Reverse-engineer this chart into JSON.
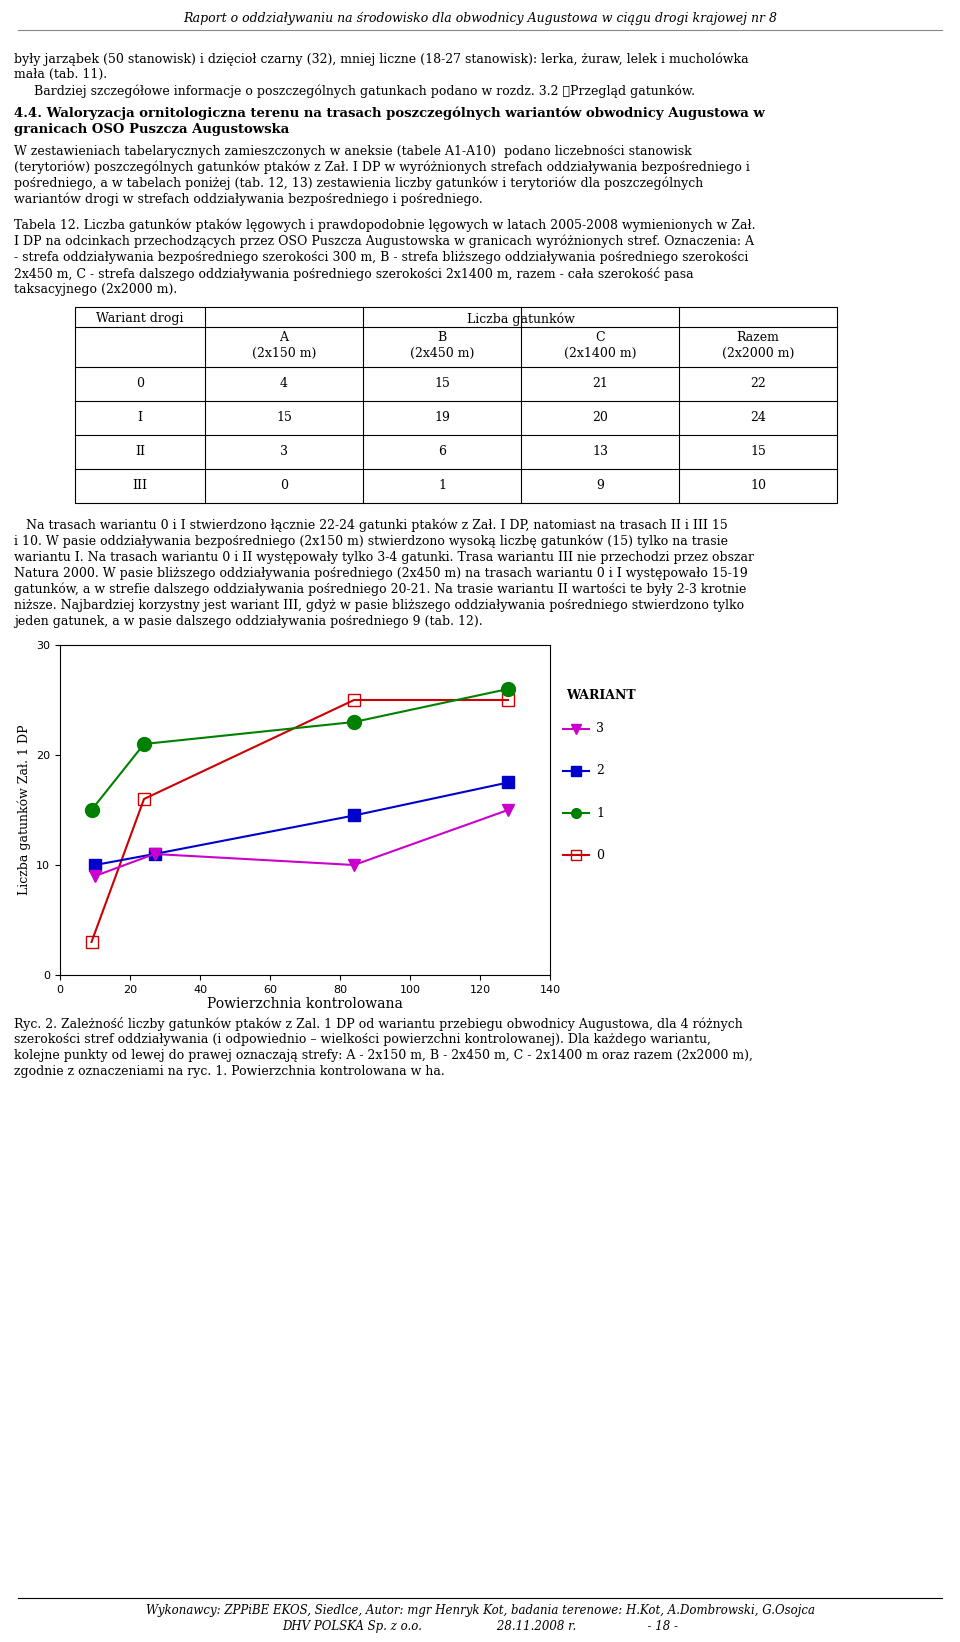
{
  "header": "Raport o oddziaływaniu na środowisko dla obwodnicy Augustowa w ciągu drogi krajowej nr 8",
  "footer_line1": "Wykonawcy: ZPPiBE EKOS, Siedlce, Autor: mgr Henryk Kot, badania terenowe: H.Kot, A.Dombrowski, G.Osojca",
  "footer_line2": "DHV POLSKA Sp. z o.o.                    28.11.2008 r.                   - 18 -",
  "body_text": [
    "były jarząbek (50 stanowisk) i dzięcioł czarny (32), mniej liczne (18-27 stanowisk): lerka, żuraw, lelek i mucholówka",
    "mała (tab. 11).",
    "     Bardziej szczegółowe informacje o poszczególnych gatunkach podano w rozdz. 3.2  Przegląd gatunków."
  ],
  "section_title1": "4.4. Waloryzacja ornitologiczna terenu na trasach poszczególnych wariantów obwodnicy Augustowa w",
  "section_title2": "granicach OSO Puszcza Augustowska",
  "body_text2": [
    "W zestawieniach tabelarycznych zamieszczonych w aneksie (tabele A1-A10)  podano liczebności stanowisk",
    "(terytoriów) poszczególnych gatunków ptaków z Zał. I DP w wyróżnionych strefach oddziaływania bezpośredniego i",
    "pośredniego, a w tabelach poniżej (tab. 12, 13) zestawienia liczby gatunków i terytoriów dla poszczególnych",
    "wariantów drogi w strefach oddziaływania bezpośredniego i pośredniego."
  ],
  "caption_lines": [
    "Tabela 12. Liczba gatunków ptaków lęgowych i prawdopodobnie lęgowych w latach 2005-2008 wymienionych w Zał.",
    "I DP na odcinkach przechodzących przez OSO Puszcza Augustowska w granicach wyróżnionych stref. Oznaczenia: A",
    "- strefa oddziaływania bezpośredniego szerokości 300 m, B - strefa bliższego oddziaływania pośredniego szerokości",
    "2x450 m, C - strefa dalszego oddziaływania pośredniego szerokości 2x1400 m, razem - cała szerokość pasa",
    "taksacyjnego (2x2000 m)."
  ],
  "table_rows": [
    [
      "0",
      "4",
      "15",
      "21",
      "22"
    ],
    [
      "I",
      "15",
      "19",
      "20",
      "24"
    ],
    [
      "II",
      "3",
      "6",
      "13",
      "15"
    ],
    [
      "III",
      "0",
      "1",
      "9",
      "10"
    ]
  ],
  "body_text3": [
    "   Na trasach wariantu 0 i I stwierdzono łącznie 22-24 gatunki ptaków z Zał. I DP, natomiast na trasach II i III 15",
    "i 10. W pasie oddziaływania bezpośredniego (2x150 m) stwierdzono wysoką liczbę gatunków (15) tylko na trasie",
    "wariantu I. Na trasach wariantu 0 i II występowały tylko 3-4 gatunki. Trasa wariantu III nie przechodzi przez obszar",
    "Natura 2000. W pasie bliższego oddziaływania pośredniego (2x450 m) na trasach wariantu 0 i I występowało 15-19",
    "gatunków, a w strefie dalszego oddziaływania pośredniego 20-21. Na trasie wariantu II wartości te były 2-3 krotnie",
    "niższe. Najbardziej korzystny jest wariant III, gdyż w pasie bliższego oddziaływania pośredniego stwierdzono tylko",
    "jeden gatunek, a w pasie dalszego oddziaływania pośredniego 9 (tab. 12)."
  ],
  "chart": {
    "xlabel": "Powierzchnia kontrolowana",
    "ylabel": "Liczba gatunków Zał. 1 DP",
    "xlim": [
      0,
      140
    ],
    "ylim": [
      0,
      30
    ],
    "xticks": [
      0,
      20,
      40,
      60,
      80,
      100,
      120,
      140
    ],
    "yticks": [
      0,
      10,
      20,
      30
    ],
    "series": [
      {
        "label": "0",
        "x": [
          9,
          24,
          84,
          128
        ],
        "y": [
          3,
          16,
          25,
          25
        ],
        "color": "#CC0000",
        "marker": "s",
        "markersize": 8,
        "filled": false,
        "legend_num": "0"
      },
      {
        "label": "1",
        "x": [
          9,
          24,
          84,
          128
        ],
        "y": [
          15,
          21,
          23,
          26
        ],
        "color": "#008000",
        "marker": "o",
        "markersize": 10,
        "filled": true,
        "legend_num": "1"
      },
      {
        "label": "2",
        "x": [
          10,
          27,
          84,
          128
        ],
        "y": [
          10,
          11,
          14.5,
          17.5
        ],
        "color": "#0000CC",
        "marker": "s",
        "markersize": 8,
        "filled": true,
        "legend_num": "2"
      },
      {
        "label": "3",
        "x": [
          10,
          27,
          84,
          128
        ],
        "y": [
          9,
          11,
          10,
          15
        ],
        "color": "#CC00CC",
        "marker": "v",
        "markersize": 9,
        "filled": true,
        "legend_num": "3"
      }
    ]
  },
  "fig_caption": [
    "Ryc. 2. Zależność liczby gatunków ptaków z Zal. 1 DP od wariantu przebiegu obwodnicy Augustowa, dla 4 różnych",
    "szerokości stref oddziaływania (i odpowiednio – wielkości powierzchni kontrolowanej). Dla każdego wariantu,",
    "kolejne punkty od lewej do prawej oznaczają strefy: A - 2x150 m, B - 2x450 m, C - 2x1400 m oraz razem (2x2000 m),",
    "zgodnie z oznaczeniami na ryc. 1. Powierzchnia kontrolowana w ha."
  ],
  "body_text2_indent": "     Bardziej szczegółowe informacje o poszczególnych gatunkach podano w rozdz. 3.2 Przegląd gatunków."
}
